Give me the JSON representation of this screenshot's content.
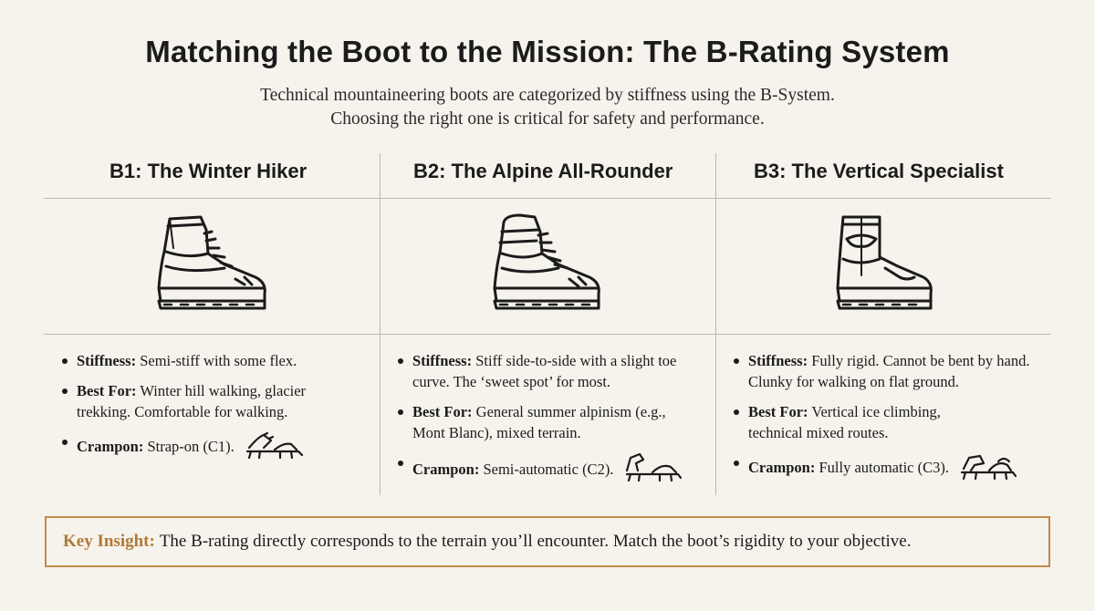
{
  "header": {
    "title": "Matching the Boot to the Mission: The B-Rating System",
    "subtitle_line1": "Technical mountaineering boots are categorized by stiffness using the B-System.",
    "subtitle_line2": "Choosing the right one is critical for safety and performance."
  },
  "columns": [
    {
      "heading": "B1: The Winter Hiker",
      "boot_icon": "hiking-boot-icon",
      "stiffness_label": "Stiffness:",
      "stiffness_text": "Semi-stiff with some flex.",
      "bestfor_label": "Best For:",
      "bestfor_text": "Winter hill walking, glacier trekking. Comfortable for walking.",
      "crampon_label": "Crampon:",
      "crampon_text": "Strap-on (C1).",
      "crampon_icon": "strap-on-crampon-icon"
    },
    {
      "heading": "B2: The Alpine All-Rounder",
      "boot_icon": "alpine-boot-icon",
      "stiffness_label": "Stiffness:",
      "stiffness_text": "Stiff side-to-side with a slight toe curve. The ‘sweet spot’ for most.",
      "bestfor_label": "Best For:",
      "bestfor_text": "General summer alpinism (e.g., Mont Blanc), mixed terrain.",
      "crampon_label": "Crampon:",
      "crampon_text": "Semi-automatic (C2).",
      "crampon_icon": "semi-automatic-crampon-icon"
    },
    {
      "heading": "B3: The Vertical Specialist",
      "boot_icon": "mountaineering-boot-icon",
      "stiffness_label": "Stiffness:",
      "stiffness_text": "Fully rigid. Cannot be bent by hand. Clunky for walking on flat ground.",
      "bestfor_label": "Best For:",
      "bestfor_text": "Vertical ice climbing, technical mixed routes.",
      "crampon_label": "Crampon:",
      "crampon_text": "Fully automatic (C3).",
      "crampon_icon": "automatic-crampon-icon"
    }
  ],
  "insight": {
    "label": "Key Insight:",
    "text": "The B-rating directly corresponds to the terrain you’ll encounter. Match the boot’s rigidity to your objective."
  },
  "colors": {
    "background": "#f6f3ec",
    "accent": "#c08a4a",
    "ink": "#1b1b1b",
    "rule": "#bdb9b1"
  }
}
